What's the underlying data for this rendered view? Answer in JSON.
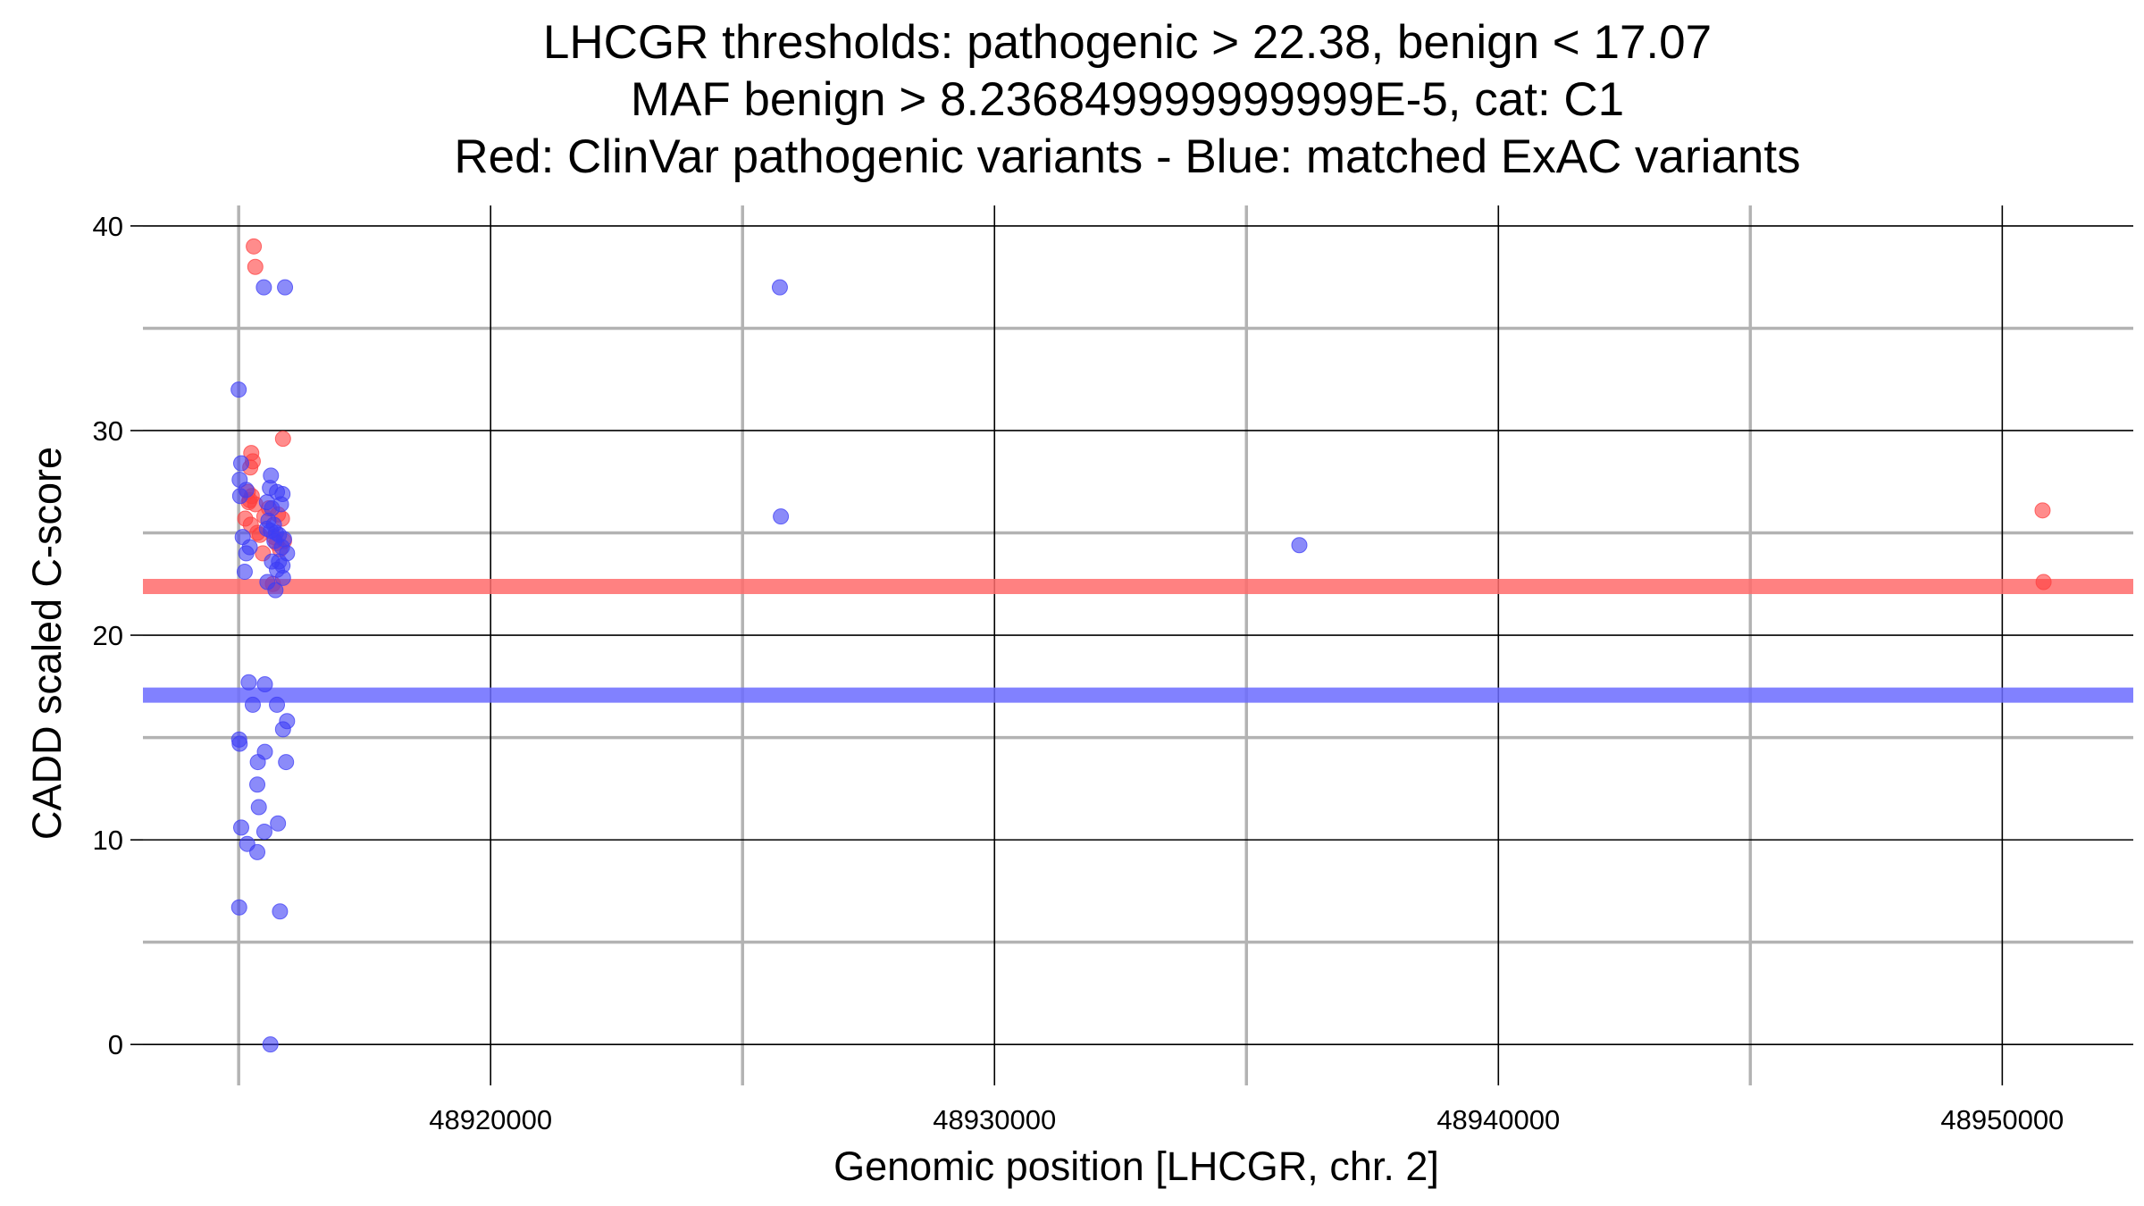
{
  "chart_data": {
    "type": "scatter",
    "title_lines": [
      "LHCGR thresholds: pathogenic > 22.38, benign < 17.07",
      "MAF benign > 8.236849999999999E-5, cat: C1",
      "Red: ClinVar pathogenic variants - Blue: matched ExAC variants"
    ],
    "xlabel": "Genomic position [LHCGR, chr. 2]",
    "ylabel": "CADD scaled C-score",
    "xlim": [
      48913100,
      48952600
    ],
    "ylim": [
      -2,
      41
    ],
    "x_ticks": [
      48920000,
      48930000,
      48940000,
      48950000
    ],
    "x_tick_labels": [
      "48920000",
      "48930000",
      "48940000",
      "48950000"
    ],
    "x_minor_gridlines": [
      48915000,
      48925000,
      48935000,
      48945000
    ],
    "y_ticks": [
      0,
      10,
      20,
      30,
      40
    ],
    "y_tick_labels": [
      "0",
      "10",
      "20",
      "30",
      "40"
    ],
    "y_minor_gridlines": [
      5,
      15,
      25,
      35
    ],
    "grid": true,
    "thresholds": [
      {
        "label": "pathogenic",
        "value": 22.38,
        "color": "#ff6b6b"
      },
      {
        "label": "benign",
        "value": 17.07,
        "color": "#6b6bff"
      }
    ],
    "series": [
      {
        "color": "#ff4040",
        "points": [
          [
            48915300,
            39.0
          ],
          [
            48915330,
            38.0
          ],
          [
            48915880,
            29.6
          ],
          [
            48915250,
            28.9
          ],
          [
            48915280,
            28.5
          ],
          [
            48915230,
            28.2
          ],
          [
            48915180,
            27.0
          ],
          [
            48915220,
            26.6
          ],
          [
            48915260,
            26.8
          ],
          [
            48915200,
            26.5
          ],
          [
            48915330,
            26.4
          ],
          [
            48915130,
            25.7
          ],
          [
            48915240,
            25.4
          ],
          [
            48915370,
            25.0
          ],
          [
            48915420,
            24.9
          ],
          [
            48915510,
            25.8
          ],
          [
            48915600,
            26.2
          ],
          [
            48915780,
            25.9
          ],
          [
            48915860,
            25.7
          ],
          [
            48915700,
            24.8
          ],
          [
            48915750,
            24.5
          ],
          [
            48915820,
            24.2
          ],
          [
            48915900,
            24.6
          ],
          [
            48915480,
            24.0
          ],
          [
            48915680,
            22.5
          ],
          [
            48950800,
            26.1
          ],
          [
            48950820,
            22.6
          ]
        ]
      },
      {
        "color": "#3d3df5",
        "points": [
          [
            48915500,
            37.0
          ],
          [
            48915920,
            37.0
          ],
          [
            48915000,
            32.0
          ],
          [
            48915050,
            28.4
          ],
          [
            48915020,
            27.6
          ],
          [
            48915030,
            26.8
          ],
          [
            48915150,
            27.1
          ],
          [
            48915640,
            27.8
          ],
          [
            48915620,
            27.2
          ],
          [
            48915760,
            27.0
          ],
          [
            48915870,
            26.9
          ],
          [
            48915560,
            26.5
          ],
          [
            48915840,
            26.4
          ],
          [
            48915660,
            26.2
          ],
          [
            48915590,
            25.6
          ],
          [
            48915700,
            25.4
          ],
          [
            48915640,
            25.1
          ],
          [
            48915740,
            25.0
          ],
          [
            48915800,
            24.9
          ],
          [
            48915560,
            25.2
          ],
          [
            48915080,
            24.8
          ],
          [
            48915900,
            24.7
          ],
          [
            48915710,
            24.6
          ],
          [
            48915150,
            24.0
          ],
          [
            48915220,
            24.3
          ],
          [
            48915860,
            24.3
          ],
          [
            48915960,
            24.0
          ],
          [
            48915660,
            23.6
          ],
          [
            48915760,
            23.2
          ],
          [
            48915800,
            23.6
          ],
          [
            48915870,
            23.4
          ],
          [
            48915120,
            23.1
          ],
          [
            48915880,
            22.8
          ],
          [
            48915570,
            22.6
          ],
          [
            48915730,
            22.2
          ],
          [
            48915200,
            17.7
          ],
          [
            48915520,
            17.6
          ],
          [
            48915280,
            16.6
          ],
          [
            48915760,
            16.6
          ],
          [
            48915960,
            15.8
          ],
          [
            48915880,
            15.4
          ],
          [
            48915010,
            14.9
          ],
          [
            48915020,
            14.7
          ],
          [
            48915520,
            14.3
          ],
          [
            48915380,
            13.8
          ],
          [
            48915940,
            13.8
          ],
          [
            48915370,
            12.7
          ],
          [
            48915400,
            11.6
          ],
          [
            48915050,
            10.6
          ],
          [
            48915780,
            10.8
          ],
          [
            48915510,
            10.4
          ],
          [
            48915170,
            9.8
          ],
          [
            48915370,
            9.4
          ],
          [
            48915010,
            6.7
          ],
          [
            48915820,
            6.5
          ],
          [
            48915630,
            0.0
          ],
          [
            48925740,
            37.0
          ],
          [
            48925760,
            25.8
          ],
          [
            48936050,
            24.4
          ]
        ]
      }
    ]
  }
}
